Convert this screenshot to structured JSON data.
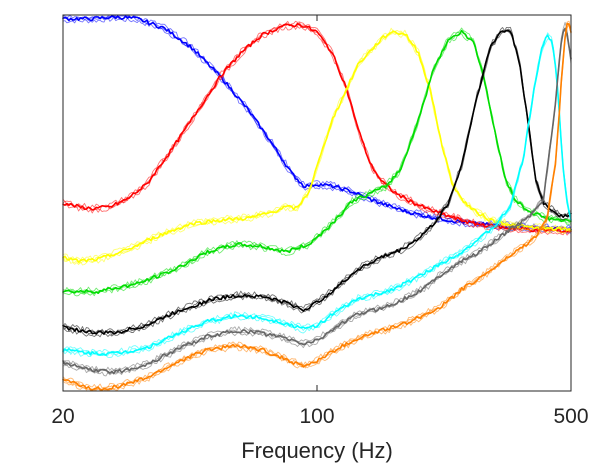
{
  "chart_data": {
    "type": "line",
    "title": "",
    "xlabel": "Frequency (Hz)",
    "ylabel": "",
    "x_scale": "log",
    "xlim": [
      20,
      500
    ],
    "ylim": [
      0,
      1
    ],
    "x_ticks": [
      {
        "value": 20,
        "label": "20"
      },
      {
        "value": 100,
        "label": "100"
      },
      {
        "value": 500,
        "label": "500"
      }
    ],
    "show_y_ticks": false,
    "grid": false,
    "legend": "none",
    "box": true,
    "series": [
      {
        "color": "#0000ff",
        "points": [
          [
            20,
            0.99
          ],
          [
            24,
            0.99
          ],
          [
            28,
            0.995
          ],
          [
            32,
            0.99
          ],
          [
            38,
            0.965
          ],
          [
            45,
            0.915
          ],
          [
            55,
            0.83
          ],
          [
            65,
            0.745
          ],
          [
            75,
            0.66
          ],
          [
            85,
            0.58
          ],
          [
            92,
            0.545
          ],
          [
            100,
            0.55
          ],
          [
            110,
            0.545
          ],
          [
            125,
            0.53
          ],
          [
            140,
            0.51
          ],
          [
            160,
            0.49
          ],
          [
            180,
            0.475
          ],
          [
            200,
            0.465
          ],
          [
            230,
            0.455
          ],
          [
            270,
            0.445
          ],
          [
            320,
            0.44
          ],
          [
            380,
            0.435
          ],
          [
            440,
            0.432
          ],
          [
            500,
            0.43
          ]
        ]
      },
      {
        "color": "#ff0000",
        "points": [
          [
            20,
            0.5
          ],
          [
            22,
            0.49
          ],
          [
            24,
            0.485
          ],
          [
            27,
            0.49
          ],
          [
            30,
            0.51
          ],
          [
            34,
            0.55
          ],
          [
            40,
            0.645
          ],
          [
            48,
            0.76
          ],
          [
            55,
            0.845
          ],
          [
            62,
            0.9
          ],
          [
            70,
            0.945
          ],
          [
            80,
            0.97
          ],
          [
            90,
            0.975
          ],
          [
            100,
            0.955
          ],
          [
            110,
            0.9
          ],
          [
            120,
            0.81
          ],
          [
            130,
            0.695
          ],
          [
            140,
            0.605
          ],
          [
            150,
            0.56
          ],
          [
            165,
            0.525
          ],
          [
            185,
            0.5
          ],
          [
            200,
            0.485
          ],
          [
            230,
            0.465
          ],
          [
            270,
            0.445
          ],
          [
            320,
            0.435
          ],
          [
            400,
            0.428
          ],
          [
            500,
            0.425
          ]
        ]
      },
      {
        "color": "#ffff00",
        "points": [
          [
            20,
            0.355
          ],
          [
            22,
            0.345
          ],
          [
            25,
            0.35
          ],
          [
            30,
            0.375
          ],
          [
            36,
            0.41
          ],
          [
            45,
            0.445
          ],
          [
            55,
            0.455
          ],
          [
            65,
            0.46
          ],
          [
            75,
            0.475
          ],
          [
            82,
            0.49
          ],
          [
            88,
            0.485
          ],
          [
            95,
            0.53
          ],
          [
            110,
            0.72
          ],
          [
            130,
            0.87
          ],
          [
            150,
            0.935
          ],
          [
            160,
            0.955
          ],
          [
            175,
            0.95
          ],
          [
            190,
            0.9
          ],
          [
            205,
            0.8
          ],
          [
            220,
            0.66
          ],
          [
            235,
            0.555
          ],
          [
            250,
            0.51
          ],
          [
            270,
            0.48
          ],
          [
            300,
            0.455
          ],
          [
            350,
            0.44
          ],
          [
            420,
            0.432
          ],
          [
            500,
            0.43
          ]
        ]
      },
      {
        "color": "#00dd00",
        "points": [
          [
            20,
            0.265
          ],
          [
            25,
            0.265
          ],
          [
            32,
            0.285
          ],
          [
            40,
            0.32
          ],
          [
            50,
            0.37
          ],
          [
            60,
            0.39
          ],
          [
            70,
            0.385
          ],
          [
            82,
            0.37
          ],
          [
            95,
            0.39
          ],
          [
            110,
            0.445
          ],
          [
            125,
            0.505
          ],
          [
            140,
            0.525
          ],
          [
            155,
            0.545
          ],
          [
            170,
            0.59
          ],
          [
            190,
            0.72
          ],
          [
            210,
            0.86
          ],
          [
            230,
            0.935
          ],
          [
            250,
            0.955
          ],
          [
            270,
            0.93
          ],
          [
            290,
            0.82
          ],
          [
            310,
            0.68
          ],
          [
            330,
            0.565
          ],
          [
            350,
            0.51
          ],
          [
            380,
            0.48
          ],
          [
            420,
            0.462
          ],
          [
            460,
            0.455
          ],
          [
            500,
            0.45
          ]
        ]
      },
      {
        "color": "#000000",
        "points": [
          [
            20,
            0.17
          ],
          [
            24,
            0.155
          ],
          [
            28,
            0.155
          ],
          [
            34,
            0.175
          ],
          [
            42,
            0.215
          ],
          [
            52,
            0.245
          ],
          [
            62,
            0.255
          ],
          [
            72,
            0.25
          ],
          [
            82,
            0.235
          ],
          [
            92,
            0.215
          ],
          [
            100,
            0.235
          ],
          [
            115,
            0.28
          ],
          [
            130,
            0.325
          ],
          [
            150,
            0.355
          ],
          [
            170,
            0.375
          ],
          [
            190,
            0.405
          ],
          [
            210,
            0.445
          ],
          [
            230,
            0.5
          ],
          [
            250,
            0.6
          ],
          [
            275,
            0.78
          ],
          [
            300,
            0.915
          ],
          [
            320,
            0.955
          ],
          [
            340,
            0.96
          ],
          [
            360,
            0.88
          ],
          [
            380,
            0.72
          ],
          [
            400,
            0.56
          ],
          [
            420,
            0.5
          ],
          [
            445,
            0.48
          ],
          [
            470,
            0.465
          ],
          [
            500,
            0.47
          ]
        ]
      },
      {
        "color": "#00ffff",
        "points": [
          [
            20,
            0.11
          ],
          [
            24,
            0.1
          ],
          [
            28,
            0.1
          ],
          [
            34,
            0.115
          ],
          [
            42,
            0.155
          ],
          [
            50,
            0.185
          ],
          [
            60,
            0.2
          ],
          [
            70,
            0.195
          ],
          [
            82,
            0.18
          ],
          [
            92,
            0.165
          ],
          [
            100,
            0.175
          ],
          [
            115,
            0.215
          ],
          [
            130,
            0.245
          ],
          [
            150,
            0.26
          ],
          [
            170,
            0.28
          ],
          [
            195,
            0.31
          ],
          [
            220,
            0.34
          ],
          [
            250,
            0.37
          ],
          [
            280,
            0.405
          ],
          [
            310,
            0.44
          ],
          [
            340,
            0.49
          ],
          [
            370,
            0.62
          ],
          [
            395,
            0.8
          ],
          [
            415,
            0.91
          ],
          [
            430,
            0.945
          ],
          [
            445,
            0.93
          ],
          [
            460,
            0.8
          ],
          [
            475,
            0.6
          ],
          [
            490,
            0.49
          ],
          [
            500,
            0.455
          ]
        ]
      },
      {
        "color": "#666666",
        "points": [
          [
            20,
            0.075
          ],
          [
            24,
            0.055
          ],
          [
            28,
            0.05
          ],
          [
            34,
            0.07
          ],
          [
            42,
            0.115
          ],
          [
            50,
            0.145
          ],
          [
            60,
            0.16
          ],
          [
            70,
            0.155
          ],
          [
            82,
            0.14
          ],
          [
            92,
            0.125
          ],
          [
            100,
            0.135
          ],
          [
            115,
            0.175
          ],
          [
            130,
            0.205
          ],
          [
            150,
            0.22
          ],
          [
            170,
            0.24
          ],
          [
            195,
            0.27
          ],
          [
            220,
            0.31
          ],
          [
            250,
            0.345
          ],
          [
            280,
            0.37
          ],
          [
            310,
            0.4
          ],
          [
            340,
            0.43
          ],
          [
            380,
            0.46
          ],
          [
            420,
            0.51
          ],
          [
            450,
            0.74
          ],
          [
            470,
            0.93
          ],
          [
            480,
            0.975
          ],
          [
            490,
            0.94
          ],
          [
            500,
            0.88
          ]
        ]
      },
      {
        "color": "#ff8000",
        "points": [
          [
            20,
            0.03
          ],
          [
            24,
            0.005
          ],
          [
            28,
            0.01
          ],
          [
            34,
            0.035
          ],
          [
            42,
            0.08
          ],
          [
            50,
            0.11
          ],
          [
            60,
            0.12
          ],
          [
            70,
            0.11
          ],
          [
            82,
            0.085
          ],
          [
            92,
            0.065
          ],
          [
            100,
            0.08
          ],
          [
            115,
            0.115
          ],
          [
            130,
            0.14
          ],
          [
            150,
            0.16
          ],
          [
            170,
            0.175
          ],
          [
            195,
            0.2
          ],
          [
            220,
            0.225
          ],
          [
            250,
            0.27
          ],
          [
            280,
            0.3
          ],
          [
            310,
            0.33
          ],
          [
            340,
            0.36
          ],
          [
            370,
            0.385
          ],
          [
            400,
            0.41
          ],
          [
            430,
            0.46
          ],
          [
            455,
            0.62
          ],
          [
            470,
            0.82
          ],
          [
            485,
            0.97
          ],
          [
            495,
            0.98
          ],
          [
            500,
            0.95
          ]
        ]
      }
    ]
  }
}
